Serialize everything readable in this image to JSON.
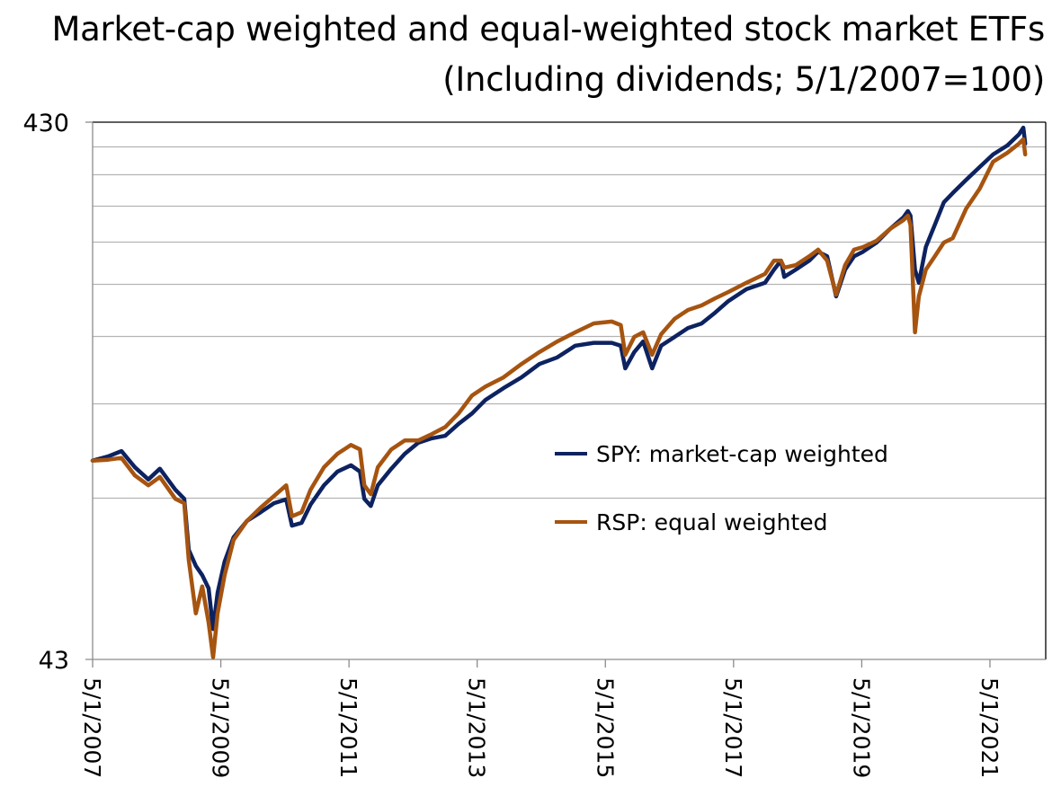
{
  "chart_data": {
    "type": "line",
    "title": "Market-cap weighted and equal-weighted stock market ETFs",
    "subtitle": "(Including dividends; 5/1/2007=100)",
    "xlabel": "",
    "ylabel": "",
    "y_scale": "log",
    "ylim": [
      43,
      430
    ],
    "y_ticks": [
      43,
      430
    ],
    "y_tick_labels": [
      "43",
      "430"
    ],
    "y_gridlines": [
      86,
      129,
      172,
      215,
      258,
      301,
      344,
      387
    ],
    "xlim": [
      2007.33,
      2022.2
    ],
    "x_ticks": [
      2007.33,
      2009.33,
      2011.33,
      2013.33,
      2015.33,
      2017.33,
      2019.33,
      2021.33
    ],
    "x_tick_labels": [
      "5/1/2007",
      "5/1/2009",
      "5/1/2011",
      "5/1/2013",
      "5/1/2015",
      "5/1/2017",
      "5/1/2019",
      "5/1/2021"
    ],
    "grid": true,
    "legend_position": "center-right",
    "x": [
      2007.33,
      2007.57,
      2007.78,
      2007.99,
      2008.2,
      2008.38,
      2008.62,
      2008.76,
      2008.83,
      2008.94,
      2009.04,
      2009.14,
      2009.21,
      2009.28,
      2009.39,
      2009.53,
      2009.74,
      2009.95,
      2010.16,
      2010.35,
      2010.44,
      2010.59,
      2010.73,
      2010.94,
      2011.15,
      2011.36,
      2011.5,
      2011.57,
      2011.67,
      2011.78,
      2011.99,
      2012.2,
      2012.41,
      2012.62,
      2012.83,
      2013.04,
      2013.25,
      2013.46,
      2013.74,
      2014.02,
      2014.3,
      2014.58,
      2014.86,
      2015.15,
      2015.43,
      2015.57,
      2015.64,
      2015.78,
      2015.92,
      2016.06,
      2016.2,
      2016.41,
      2016.62,
      2016.83,
      2017.04,
      2017.25,
      2017.53,
      2017.82,
      2017.96,
      2018.07,
      2018.12,
      2018.3,
      2018.51,
      2018.65,
      2018.79,
      2018.93,
      2019.07,
      2019.21,
      2019.35,
      2019.56,
      2019.77,
      2019.98,
      2020.05,
      2020.09,
      2020.16,
      2020.22,
      2020.33,
      2020.47,
      2020.61,
      2020.75,
      2020.96,
      2021.17,
      2021.38,
      2021.6,
      2021.78,
      2021.85,
      2021.88
    ],
    "series": [
      {
        "name": "SPY: market-cap weighted",
        "color": "#0d2260",
        "values": [
          100.8,
          102.6,
          105,
          98,
          93,
          97.4,
          89,
          85.6,
          68.8,
          64.2,
          61.7,
          58.3,
          49,
          57.2,
          65.4,
          72.6,
          77.9,
          80.8,
          84,
          85.4,
          76.3,
          77.2,
          83.5,
          90.7,
          96.2,
          98.8,
          96.2,
          85.6,
          83,
          90.7,
          97.4,
          103.8,
          108.8,
          110.9,
          112.1,
          118,
          123.4,
          130.8,
          137.5,
          144,
          152.5,
          156.9,
          165,
          167,
          167,
          165,
          149.7,
          160.5,
          168,
          149.7,
          165,
          171.3,
          178,
          181.4,
          190,
          199.8,
          210.2,
          216,
          228.6,
          237.6,
          221.6,
          228.6,
          237.6,
          246.8,
          242,
          203.8,
          228.6,
          242,
          246.8,
          256.7,
          272,
          286,
          293.7,
          288,
          228.6,
          216,
          252,
          277,
          305,
          317.4,
          336,
          354.8,
          374.5,
          389,
          407.7,
          420,
          392
        ]
      },
      {
        "name": "RSP: equal weighted",
        "color": "#a65410",
        "values": [
          100.8,
          101.2,
          102,
          94.6,
          90.7,
          94,
          85.6,
          84,
          65.9,
          52.4,
          58.8,
          50.4,
          43.4,
          52.4,
          61.7,
          71.8,
          77.9,
          82.4,
          86.6,
          90.7,
          79.4,
          80.8,
          89,
          98,
          103.8,
          107.8,
          105.8,
          90.7,
          87.3,
          98,
          105.8,
          109.9,
          109.9,
          112.9,
          116.4,
          123.4,
          133.3,
          138.5,
          144,
          152.5,
          160.5,
          168,
          174.7,
          181.5,
          183,
          180.2,
          158.7,
          171.3,
          174.7,
          158.7,
          173.3,
          185.1,
          192.3,
          196,
          202.1,
          207.7,
          216,
          224.4,
          237.6,
          237.6,
          230.5,
          233,
          242,
          249,
          237.6,
          205.3,
          233,
          249,
          251.8,
          258.6,
          272,
          282.6,
          288,
          277,
          174.7,
          203.8,
          228.6,
          242,
          256.7,
          261.6,
          297,
          323.4,
          363,
          377,
          392,
          399.6,
          374.5
        ]
      }
    ]
  }
}
